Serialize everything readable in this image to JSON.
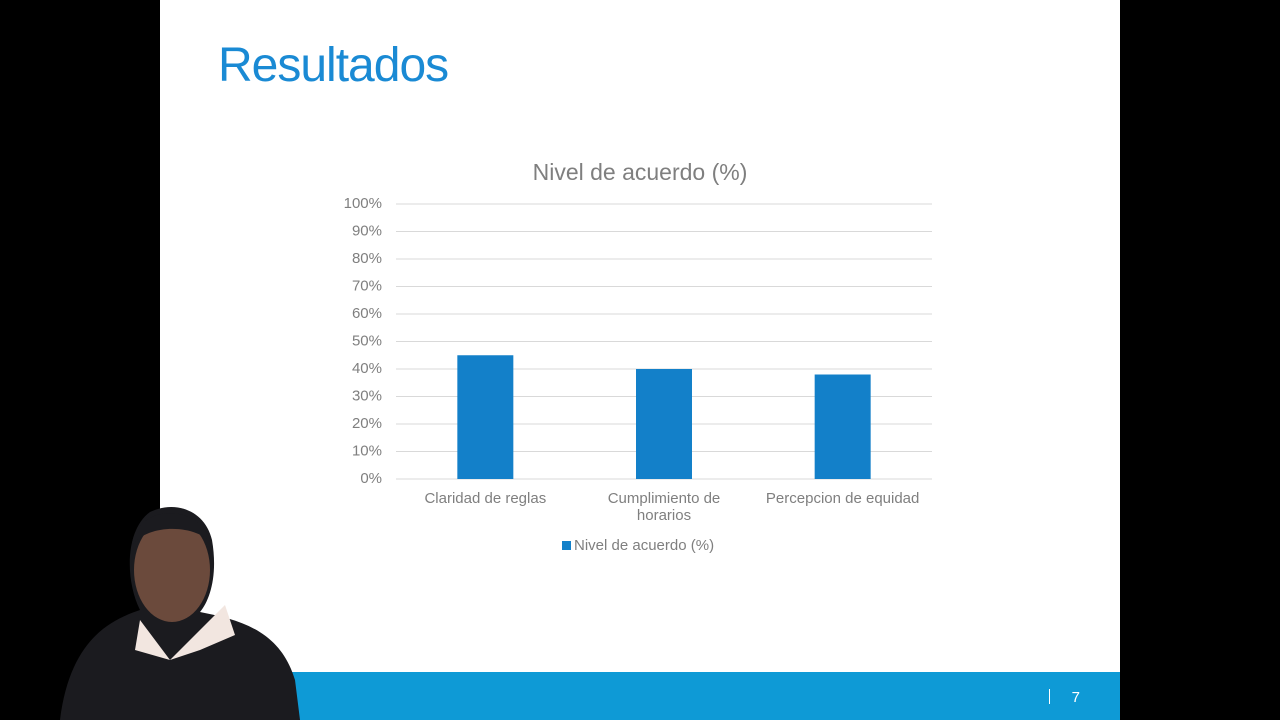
{
  "slide": {
    "title": "Resultados",
    "page_number": "7"
  },
  "chart_data": {
    "type": "bar",
    "title": "Nivel de acuerdo (%)",
    "categories": [
      "Claridad de reglas",
      "Cumplimiento de horarios",
      "Percepcion de equidad"
    ],
    "series": [
      {
        "name": "Nivel de acuerdo (%)",
        "color": "#1380c9",
        "values": [
          45,
          40,
          38
        ]
      }
    ],
    "ylim": [
      0,
      100
    ],
    "yticks": [
      {
        "value": 0,
        "label": "0%"
      },
      {
        "value": 10,
        "label": "10%"
      },
      {
        "value": 20,
        "label": "20%"
      },
      {
        "value": 30,
        "label": "30%"
      },
      {
        "value": 40,
        "label": "40%"
      },
      {
        "value": 50,
        "label": "50%"
      },
      {
        "value": 60,
        "label": "60%"
      },
      {
        "value": 70,
        "label": "70%"
      },
      {
        "value": 80,
        "label": "80%"
      },
      {
        "value": 90,
        "label": "90%"
      },
      {
        "value": 100,
        "label": "100%"
      }
    ],
    "grid": true,
    "legend": "bottom"
  }
}
